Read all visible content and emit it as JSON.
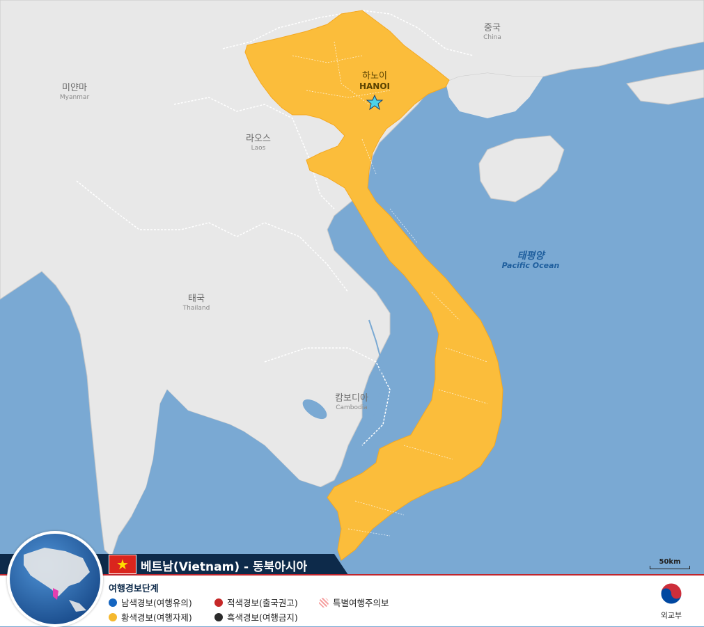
{
  "map": {
    "countries": [
      {
        "name_ko": "중국",
        "name_en": "China"
      },
      {
        "name_ko": "미얀마",
        "name_en": "Myanmar"
      },
      {
        "name_ko": "라오스",
        "name_en": "Laos"
      },
      {
        "name_ko": "태국",
        "name_en": "Thailand"
      },
      {
        "name_ko": "캄보디아",
        "name_en": "Cambodia"
      }
    ],
    "sea": {
      "name_ko": "태평양",
      "name_en": "Pacific Ocean"
    },
    "capital": {
      "name_ko": "하노이",
      "name_en": "HANOI"
    },
    "scale_label": "50km"
  },
  "title": {
    "country": "베트남(Vietnam) - 동북아시아"
  },
  "legend": {
    "title": "여행경보단계",
    "items": [
      {
        "label": "남색경보(여행유의)",
        "color": "#1565c0"
      },
      {
        "label": "적색경보(출국권고)",
        "color": "#c62828"
      },
      {
        "label": "특별여행주의보",
        "color": "#f5a0a0"
      },
      {
        "label": "황색경보(여행자제)",
        "color": "#f5b82e"
      },
      {
        "label": "흑색경보(여행금지)",
        "color": "#2b2b2b"
      }
    ]
  },
  "logo": {
    "label": "외교부"
  },
  "colors": {
    "sea": "#7aa9d3",
    "land": "#e8e8e8",
    "vietnam": "#fbbd3b",
    "title_bar": "#0d2a4a"
  }
}
